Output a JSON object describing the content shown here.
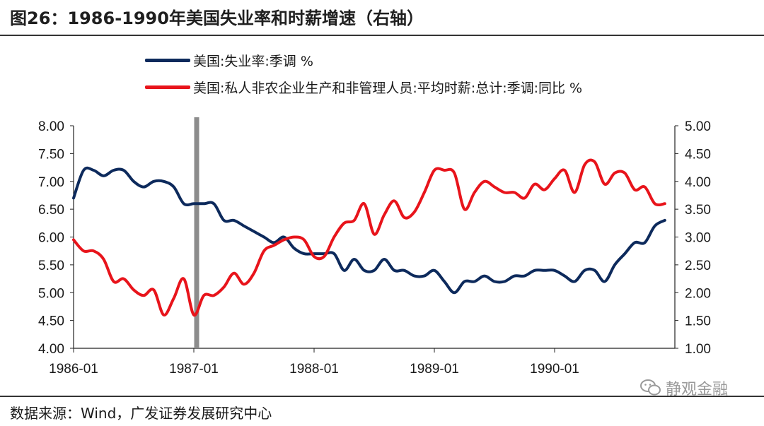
{
  "title": "图26：1986-1990年美国失业率和时薪增速（右轴）",
  "footer": "数据来源：Wind，广发证券发展研究中心",
  "watermark": "静观金融",
  "colors": {
    "unemployment": "#0d2a5c",
    "wage": "#e8141b",
    "marker": "#8c8c8c",
    "axis": "#222222"
  },
  "chart_data": {
    "type": "line",
    "left_axis": {
      "min": 4.0,
      "max": 8.0,
      "ticks": [
        "8.00",
        "7.50",
        "7.00",
        "6.50",
        "6.00",
        "5.50",
        "5.00",
        "4.50",
        "4.00"
      ]
    },
    "right_axis": {
      "min": 1.0,
      "max": 5.0,
      "ticks": [
        "5.00",
        "4.50",
        "4.00",
        "3.50",
        "3.00",
        "2.50",
        "2.00",
        "1.50",
        "1.00"
      ]
    },
    "x_ticks": [
      "1986-01",
      "1987-01",
      "1988-01",
      "1989-01",
      "1990-01"
    ],
    "x_range": [
      "1986-01",
      "1990-12"
    ],
    "vertical_marker": "1987-01",
    "series": [
      {
        "name": "美国:失业率:季调 %",
        "axis": "left",
        "x": [
          "1986-01",
          "1986-02",
          "1986-03",
          "1986-04",
          "1986-05",
          "1986-06",
          "1986-07",
          "1986-08",
          "1986-09",
          "1986-10",
          "1986-11",
          "1986-12",
          "1987-01",
          "1987-02",
          "1987-03",
          "1987-04",
          "1987-05",
          "1987-06",
          "1987-07",
          "1987-08",
          "1987-09",
          "1987-10",
          "1987-11",
          "1987-12",
          "1988-01",
          "1988-02",
          "1988-03",
          "1988-04",
          "1988-05",
          "1988-06",
          "1988-07",
          "1988-08",
          "1988-09",
          "1988-10",
          "1988-11",
          "1988-12",
          "1989-01",
          "1989-02",
          "1989-03",
          "1989-04",
          "1989-05",
          "1989-06",
          "1989-07",
          "1989-08",
          "1989-09",
          "1989-10",
          "1989-11",
          "1989-12",
          "1990-01",
          "1990-02",
          "1990-03",
          "1990-04",
          "1990-05",
          "1990-06",
          "1990-07",
          "1990-08",
          "1990-09",
          "1990-10",
          "1990-11",
          "1990-12"
        ],
        "values": [
          6.7,
          7.2,
          7.2,
          7.1,
          7.2,
          7.2,
          7.0,
          6.9,
          7.0,
          7.0,
          6.9,
          6.6,
          6.6,
          6.6,
          6.6,
          6.3,
          6.3,
          6.2,
          6.1,
          6.0,
          5.9,
          6.0,
          5.8,
          5.7,
          5.7,
          5.7,
          5.7,
          5.4,
          5.6,
          5.4,
          5.4,
          5.6,
          5.4,
          5.4,
          5.3,
          5.3,
          5.4,
          5.2,
          5.0,
          5.2,
          5.2,
          5.3,
          5.2,
          5.2,
          5.3,
          5.3,
          5.4,
          5.4,
          5.4,
          5.3,
          5.2,
          5.4,
          5.4,
          5.2,
          5.5,
          5.7,
          5.9,
          5.9,
          6.2,
          6.3
        ]
      },
      {
        "name": "美国:私人非农企业生产和非管理人员:平均时薪:总计:季调:同比 %",
        "axis": "right",
        "x": [
          "1986-01",
          "1986-02",
          "1986-03",
          "1986-04",
          "1986-05",
          "1986-06",
          "1986-07",
          "1986-08",
          "1986-09",
          "1986-10",
          "1986-11",
          "1986-12",
          "1987-01",
          "1987-02",
          "1987-03",
          "1987-04",
          "1987-05",
          "1987-06",
          "1987-07",
          "1987-08",
          "1987-09",
          "1987-10",
          "1987-11",
          "1987-12",
          "1988-01",
          "1988-02",
          "1988-03",
          "1988-04",
          "1988-05",
          "1988-06",
          "1988-07",
          "1988-08",
          "1988-09",
          "1988-10",
          "1988-11",
          "1988-12",
          "1989-01",
          "1989-02",
          "1989-03",
          "1989-04",
          "1989-05",
          "1989-06",
          "1989-07",
          "1989-08",
          "1989-09",
          "1989-10",
          "1989-11",
          "1989-12",
          "1990-01",
          "1990-02",
          "1990-03",
          "1990-04",
          "1990-05",
          "1990-06",
          "1990-07",
          "1990-08",
          "1990-09",
          "1990-10",
          "1990-11",
          "1990-12"
        ],
        "values": [
          2.95,
          2.75,
          2.75,
          2.6,
          2.2,
          2.25,
          2.05,
          1.95,
          2.05,
          1.6,
          1.9,
          2.25,
          1.6,
          1.95,
          1.95,
          2.1,
          2.35,
          2.15,
          2.35,
          2.75,
          2.85,
          2.95,
          3.0,
          2.95,
          2.65,
          2.65,
          3.0,
          3.25,
          3.3,
          3.6,
          3.05,
          3.4,
          3.65,
          3.35,
          3.45,
          3.8,
          4.2,
          4.2,
          4.15,
          3.5,
          3.8,
          4.0,
          3.9,
          3.8,
          3.8,
          3.7,
          3.95,
          3.85,
          4.05,
          4.2,
          3.8,
          4.3,
          4.35,
          3.95,
          4.15,
          4.15,
          3.85,
          3.9,
          3.6,
          3.6
        ]
      }
    ]
  }
}
